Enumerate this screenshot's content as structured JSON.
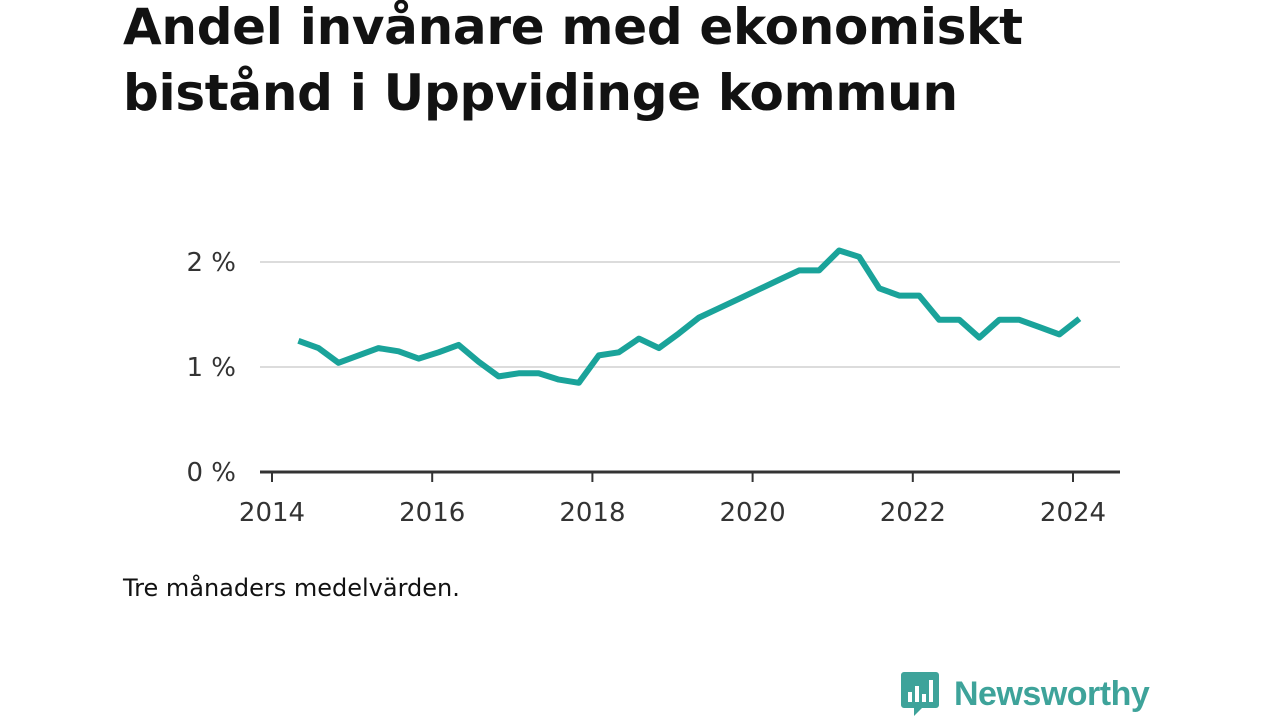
{
  "title": "Andel invånare med ekonomiskt bistånd i Uppvidinge kommun",
  "note": "Tre månaders medelvärden.",
  "brand": {
    "name": "Newsworthy",
    "icon": "bar-chart-speech-bubble-icon",
    "color": "#3ea39a"
  },
  "chart_data": {
    "type": "line",
    "title": "Andel invånare med ekonomiskt bistånd i Uppvidinge kommun",
    "xlabel": "",
    "ylabel": "",
    "ylim": [
      0,
      2
    ],
    "xlim": [
      2014,
      2024.6
    ],
    "grid": true,
    "legend": "none",
    "y_ticks": [
      {
        "value": 0,
        "label": "0 %"
      },
      {
        "value": 1,
        "label": "1 %"
      },
      {
        "value": 2,
        "label": "2 %"
      }
    ],
    "x_ticks": [
      {
        "value": 2014,
        "label": "2014"
      },
      {
        "value": 2016,
        "label": "2016"
      },
      {
        "value": 2018,
        "label": "2018"
      },
      {
        "value": 2020,
        "label": "2020"
      },
      {
        "value": 2022,
        "label": "2022"
      },
      {
        "value": 2024,
        "label": "2024"
      }
    ],
    "series": [
      {
        "color": "#1aa39a",
        "x": [
          2014.33,
          2014.58,
          2014.83,
          2015.08,
          2015.33,
          2015.58,
          2015.83,
          2016.08,
          2016.33,
          2016.58,
          2016.83,
          2017.08,
          2017.33,
          2017.58,
          2017.83,
          2018.08,
          2018.33,
          2018.58,
          2018.83,
          2019.08,
          2019.33,
          2019.58,
          2019.83,
          2020.08,
          2020.33,
          2020.58,
          2020.83,
          2021.08,
          2021.33,
          2021.58,
          2021.83,
          2022.08,
          2022.33,
          2022.58,
          2022.83,
          2023.08,
          2023.33,
          2023.58,
          2023.83,
          2024.08
        ],
        "values": [
          1.25,
          1.18,
          1.04,
          1.11,
          1.18,
          1.15,
          1.08,
          1.14,
          1.21,
          1.05,
          0.91,
          0.94,
          0.94,
          0.88,
          0.85,
          1.11,
          1.14,
          1.27,
          1.18,
          1.32,
          1.47,
          1.56,
          1.65,
          1.74,
          1.83,
          1.92,
          1.92,
          2.11,
          2.05,
          1.75,
          1.68,
          1.68,
          1.45,
          1.45,
          1.28,
          1.45,
          1.45,
          1.38,
          1.31,
          1.46
        ]
      }
    ]
  }
}
